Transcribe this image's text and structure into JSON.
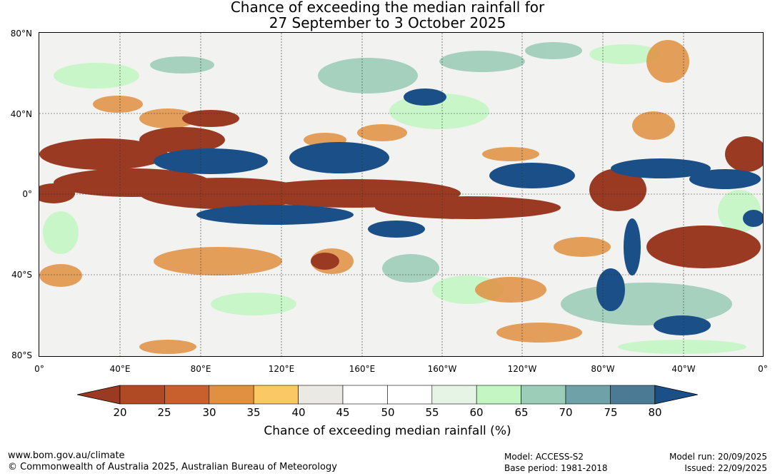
{
  "title": {
    "line1": "Chance of exceeding the median rainfall for",
    "line2": "27 September to 3 October 2025"
  },
  "lat_labels": [
    "80°N",
    "40°N",
    "0°",
    "40°S",
    "80°S"
  ],
  "lon_labels": [
    "0°",
    "40°E",
    "80°E",
    "120°E",
    "160°E",
    "160°W",
    "120°W",
    "80°W",
    "40°W",
    "0°"
  ],
  "colorbar": {
    "ticks": [
      "20",
      "25",
      "30",
      "35",
      "40",
      "45",
      "50",
      "55",
      "60",
      "65",
      "70",
      "75",
      "80"
    ],
    "colors": [
      "#9b3a22",
      "#b04a25",
      "#c8602d",
      "#e09040",
      "#fbc866",
      "#ebe9e4",
      "#ffffff",
      "#ffffff",
      "#e6f4e6",
      "#c4f6c4",
      "#9ccdb8",
      "#6ea2a8",
      "#4b7a94",
      "#1a4f88"
    ],
    "title": "Chance of exceeding median rainfall (%)"
  },
  "footer": {
    "url": "www.bom.gov.au/climate",
    "copyright": "© Commonwealth of Australia 2025, Australian Bureau of Meteorology",
    "model": "Model: ACCESS-S2",
    "base_period": "Base period: 1981-2018",
    "model_run": "Model run: 20/09/2025",
    "issued": "Issued: 22/09/2025"
  }
}
